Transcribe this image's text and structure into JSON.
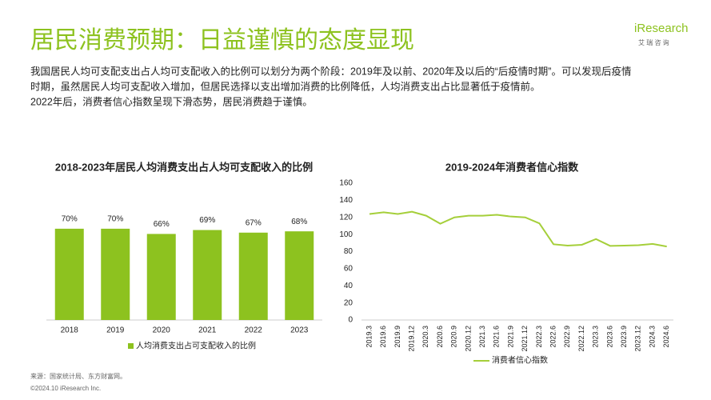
{
  "header": {
    "title": "居民消费预期：日益谨慎的态度显现",
    "description": [
      "我国居民人均可支配支出占人均可支配收入的比例可以划分为两个阶段：2019年及以前、2020年及以后的“后疫情时期”。可以发现后疫情",
      "时期，虽然居民人均可支配收入增加，但居民选择以支出增加消费的比例降低，人均消费支出占比显著低于疫情前。",
      "2022年后，消费者信心指数呈现下滑态势，居民消费趋于谨慎。"
    ]
  },
  "logo": {
    "brand": "iResearch",
    "sub": "艾 瑞 咨 询"
  },
  "chart_data": [
    {
      "type": "bar",
      "title": "2018-2023年居民人均消费支出占人均可支配收入的比例",
      "categories": [
        "2018",
        "2019",
        "2020",
        "2021",
        "2022",
        "2023"
      ],
      "series": [
        {
          "name": "人均消费支出占可支配收入的比例",
          "color": "#8dc21f",
          "values": [
            70,
            70,
            66,
            69,
            67,
            68
          ],
          "value_labels": [
            "70%",
            "70%",
            "66%",
            "69%",
            "67%",
            "68%"
          ]
        }
      ]
    },
    {
      "type": "line",
      "title": "2019-2024年消费者信心指数",
      "categories": [
        "2019.3",
        "2019.6",
        "2019.9",
        "2019.12",
        "2020.3",
        "2020.6",
        "2020.9",
        "2020.12",
        "2021.3",
        "2021.6",
        "2021.9",
        "2021.12",
        "2022.3",
        "2022.6",
        "2022.9",
        "2022.12",
        "2023.3",
        "2023.6",
        "2023.9",
        "2023.12",
        "2024.3",
        "2024.6"
      ],
      "series": [
        {
          "name": "消费者信心指数",
          "color": "#a5cf3a",
          "values": [
            124,
            126,
            124,
            126.6,
            122,
            112.6,
            120,
            122,
            122,
            123,
            121,
            120,
            113,
            88.6,
            87,
            88,
            94.7,
            86.7,
            87,
            87.5,
            89,
            86
          ]
        }
      ],
      "ylim": [
        0,
        160
      ],
      "yticks": [
        0,
        20,
        40,
        60,
        80,
        100,
        120,
        140,
        160
      ]
    }
  ],
  "footer": {
    "source": "来源：国家统计局、东方财富网。",
    "copyright": "©2024.10 iResearch Inc."
  }
}
